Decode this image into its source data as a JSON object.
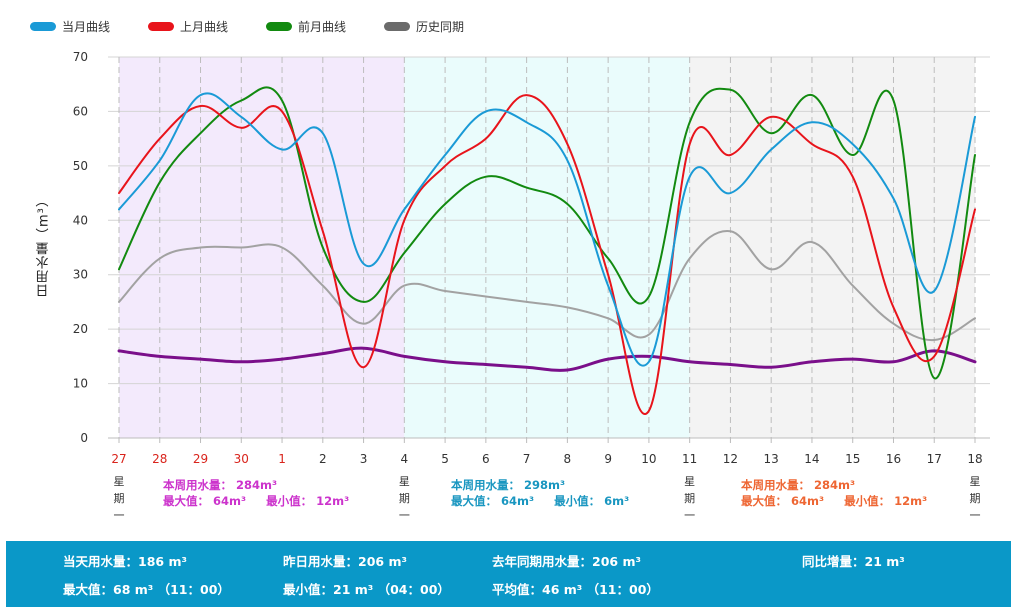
{
  "legend": [
    {
      "name": "当月曲线",
      "color": "#1a9ad6"
    },
    {
      "name": "上月曲线",
      "color": "#e8141b"
    },
    {
      "name": "前月曲线",
      "color": "#128a10"
    },
    {
      "name": "历史同期",
      "color": "#6b6b6b"
    }
  ],
  "ylabel": "日用水量（m³）",
  "weekday_label": "星期一",
  "weeks": [
    {
      "total_label": "本周用水量：",
      "total": "284m³",
      "max_label": "最大值：",
      "max": "64m³",
      "min_label": "最小值：",
      "min": "12m³",
      "color": "#cc33cc"
    },
    {
      "total_label": "本周用水量：",
      "total": "298m³",
      "max_label": "最大值：",
      "max": "64m³",
      "min_label": "最小值：",
      "min": "6m³",
      "color": "#1996c0"
    },
    {
      "total_label": "本周用水量：",
      "total": "284m³",
      "max_label": "最大值：",
      "max": "64m³",
      "min_label": "最小值：",
      "min": "12m³",
      "color": "#ee6633"
    }
  ],
  "footer": {
    "today": "当天用水量：186 m³",
    "yesterday": "昨日用水量：206 m³",
    "last_year": "去年同期用水量：206 m³",
    "yoy": "同比增量：21 m³",
    "max": "最大值：68 m³  （11：00）",
    "min": "最小值：21 m³  （04：00）",
    "avg": "平均值：46 m³  （11：00）"
  },
  "chart_data": {
    "type": "line",
    "x": [
      "27",
      "28",
      "29",
      "30",
      "1",
      "2",
      "3",
      "4",
      "5",
      "6",
      "7",
      "8",
      "9",
      "10",
      "11",
      "12",
      "13",
      "14",
      "15",
      "16",
      "17",
      "18"
    ],
    "x_label_colors": [
      "#d9241c",
      "#d9241c",
      "#d9241c",
      "#d9241c",
      "#d9241c",
      "#333",
      "#333",
      "#333",
      "#333",
      "#333",
      "#333",
      "#333",
      "#333",
      "#333",
      "#333",
      "#333",
      "#333",
      "#333",
      "#333",
      "#333",
      "#333",
      "#333"
    ],
    "yticks": [
      0,
      10,
      20,
      30,
      40,
      50,
      60,
      70
    ],
    "ylim": [
      0,
      70
    ],
    "bands": [
      {
        "from": 0,
        "to": 7,
        "color": "#f3eafc"
      },
      {
        "from": 7,
        "to": 14,
        "color": "#eafcfc"
      },
      {
        "from": 14,
        "to": 21,
        "color": "#f3f3f3"
      }
    ],
    "series": [
      {
        "name": "当月曲线",
        "color": "#1a9ad6",
        "values": [
          42,
          51,
          63,
          59,
          53,
          56,
          32,
          42,
          52,
          60,
          58,
          51,
          28,
          14,
          48,
          45,
          53,
          58,
          54,
          44,
          27,
          59
        ]
      },
      {
        "name": "上月曲线",
        "color": "#e8141b",
        "values": [
          45,
          55,
          61,
          57,
          60,
          38,
          13,
          40,
          50,
          55,
          63,
          54,
          30,
          5,
          54,
          52,
          59,
          54,
          48,
          24,
          15,
          42
        ]
      },
      {
        "name": "前月曲线",
        "color": "#128a10",
        "values": [
          31,
          47,
          56,
          62,
          62,
          35,
          25,
          34,
          43,
          48,
          46,
          43,
          33,
          26,
          58,
          64,
          56,
          63,
          52,
          62,
          11,
          52
        ]
      },
      {
        "name": "历史同期",
        "color": "#a2a2a2",
        "values": [
          25,
          33,
          35,
          35,
          35,
          28,
          21,
          28,
          27,
          26,
          25,
          24,
          22,
          19,
          33,
          38,
          31,
          36,
          28,
          21,
          18,
          22
        ]
      },
      {
        "name": "",
        "color": "#7a0f8a",
        "values": [
          16,
          15,
          14.5,
          14,
          14.5,
          15.5,
          16.5,
          15,
          14,
          13.5,
          13,
          12.5,
          14.5,
          15,
          14,
          13.5,
          13,
          14,
          14.5,
          14,
          16,
          14
        ]
      }
    ]
  }
}
